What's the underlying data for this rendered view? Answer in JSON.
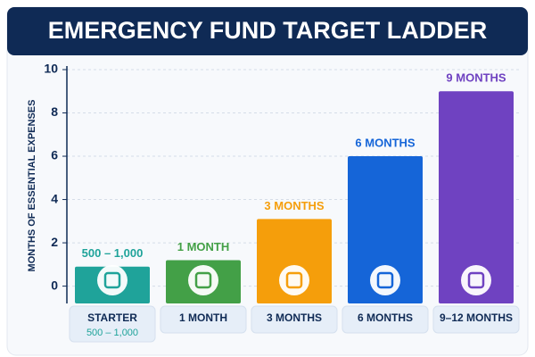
{
  "chart_data": {
    "type": "bar",
    "title": "EMERGENCY FUND TARGET LADDER",
    "y_label": "MONTHS OF ESSENTIAL EXPENSES",
    "categories": [
      "STARTER",
      "1 MONTH",
      "3 MONTHS",
      "6 MONTHS",
      "9–12 MONTHS"
    ],
    "category_sublabels": [
      "500 – 1,000",
      null,
      null,
      null,
      null
    ],
    "values": [
      0.9,
      1.2,
      3.1,
      6,
      9
    ],
    "annotations": [
      "500 – 1,000",
      "1 MONTH",
      "3 MONTHS",
      "6 MONTHS",
      "9 MONTHS"
    ],
    "colors": [
      "#1fa39a",
      "#43a047",
      "#f59e0b",
      "#1565d8",
      "#6f42c1"
    ],
    "ylim": [
      -0.8,
      10
    ],
    "yticks": [
      0,
      2,
      4,
      6,
      8,
      10
    ],
    "grid": true
  }
}
